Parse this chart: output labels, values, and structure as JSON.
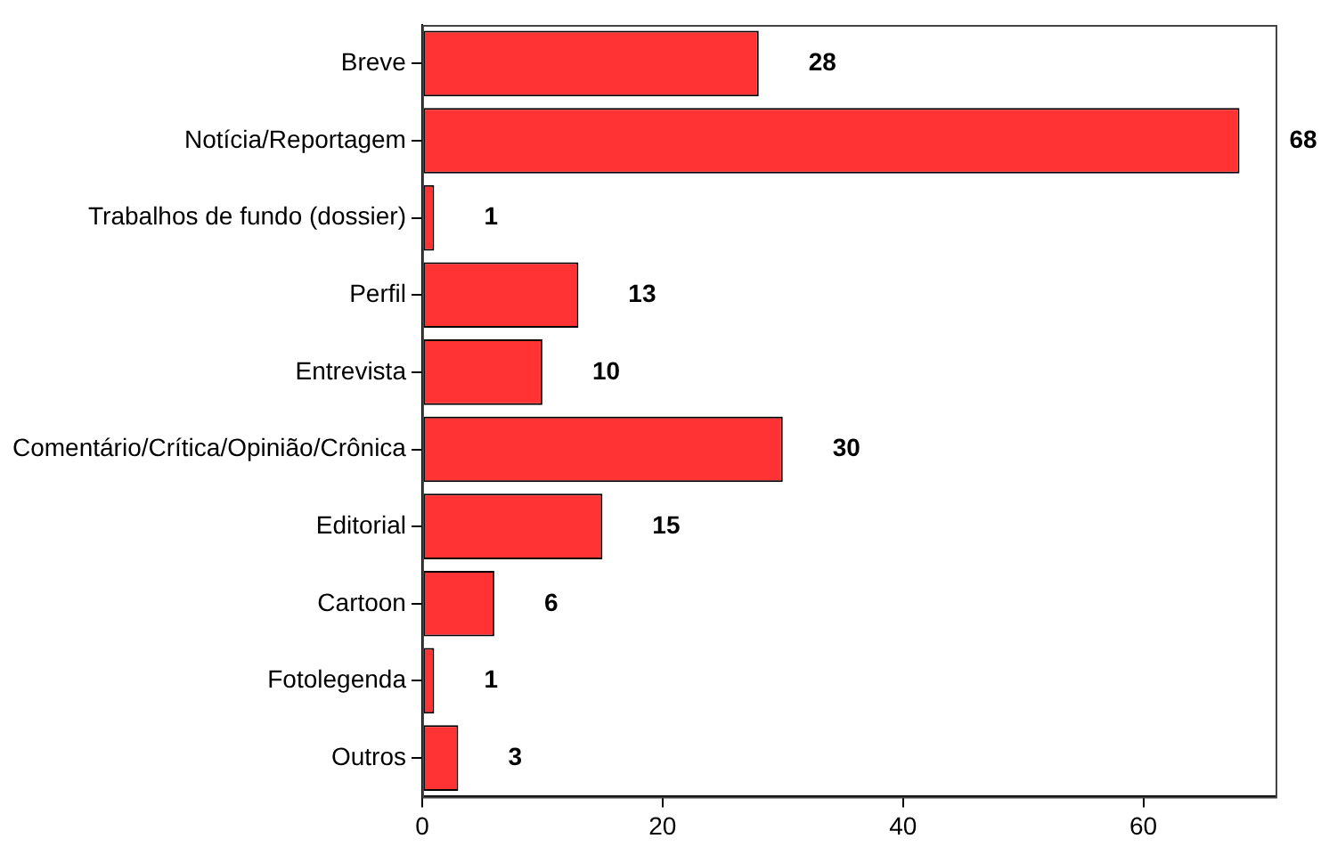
{
  "chart_data": {
    "type": "bar",
    "orientation": "horizontal",
    "categories": [
      "Breve",
      "Notícia/Reportagem",
      "Trabalhos de fundo (dossier)",
      "Perfil",
      "Entrevista",
      "Comentário/Crítica/Opinião/Crônica",
      "Editorial",
      "Cartoon",
      "Fotolegenda",
      "Outros"
    ],
    "values": [
      28,
      68,
      1,
      13,
      10,
      30,
      15,
      6,
      1,
      3
    ],
    "color": "#ff3333",
    "xlim": [
      0,
      71
    ],
    "xticks": [
      0,
      20,
      40,
      60
    ],
    "data_labels": true,
    "grid": false,
    "legend": false
  }
}
